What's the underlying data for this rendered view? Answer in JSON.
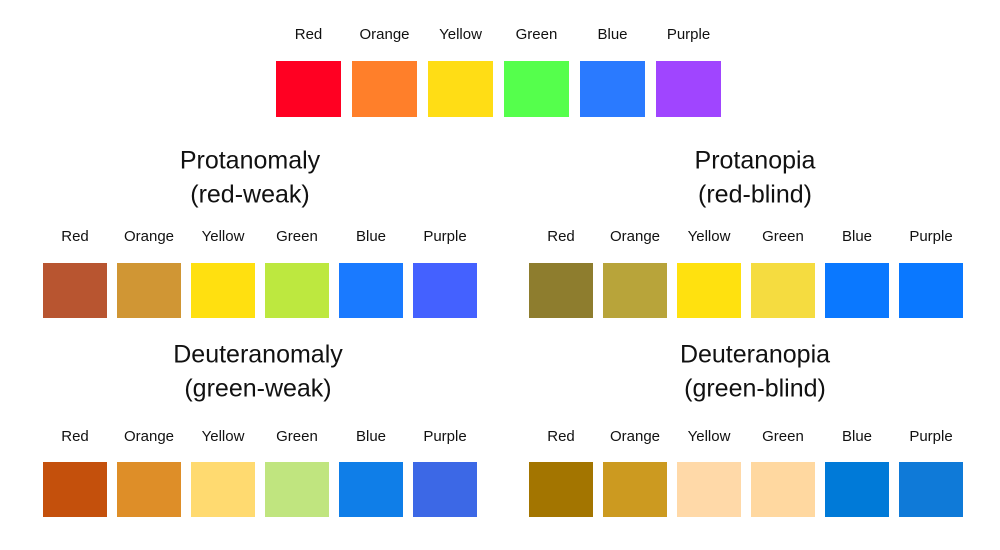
{
  "normal": {
    "labels": [
      "Red",
      "Orange",
      "Yellow",
      "Green",
      "Blue",
      "Purple"
    ],
    "colors": [
      "#ff0022",
      "#ff7f2a",
      "#ffdd15",
      "#55ff4c",
      "#2a7aff",
      "#a045ff"
    ]
  },
  "panels": [
    {
      "title": [
        "Protanomaly",
        "(red-weak)"
      ],
      "labels": [
        "Red",
        "Orange",
        "Yellow",
        "Green",
        "Blue",
        "Purple"
      ],
      "colors": [
        "#b85530",
        "#d09634",
        "#ffe010",
        "#bde83f",
        "#1a7aff",
        "#4461ff"
      ]
    },
    {
      "title": [
        "Protanopia",
        "(red-blind)"
      ],
      "labels": [
        "Red",
        "Orange",
        "Yellow",
        "Green",
        "Blue",
        "Purple"
      ],
      "colors": [
        "#8e7d2e",
        "#b8a43a",
        "#ffe10f",
        "#f5dc40",
        "#0a78ff",
        "#0a78ff"
      ]
    },
    {
      "title": [
        "Deuteranomaly",
        "(green-weak)"
      ],
      "labels": [
        "Red",
        "Orange",
        "Yellow",
        "Green",
        "Blue",
        "Purple"
      ],
      "colors": [
        "#c4500c",
        "#de8e28",
        "#ffda70",
        "#c0e57f",
        "#0f7ee8",
        "#3c68e6"
      ]
    },
    {
      "title": [
        "Deuteranopia",
        "(green-blind)"
      ],
      "labels": [
        "Red",
        "Orange",
        "Yellow",
        "Green",
        "Blue",
        "Purple"
      ],
      "colors": [
        "#a37500",
        "#cc9a20",
        "#ffd9a8",
        "#ffd8a0",
        "#007ad8",
        "#0f7ad8"
      ]
    }
  ]
}
